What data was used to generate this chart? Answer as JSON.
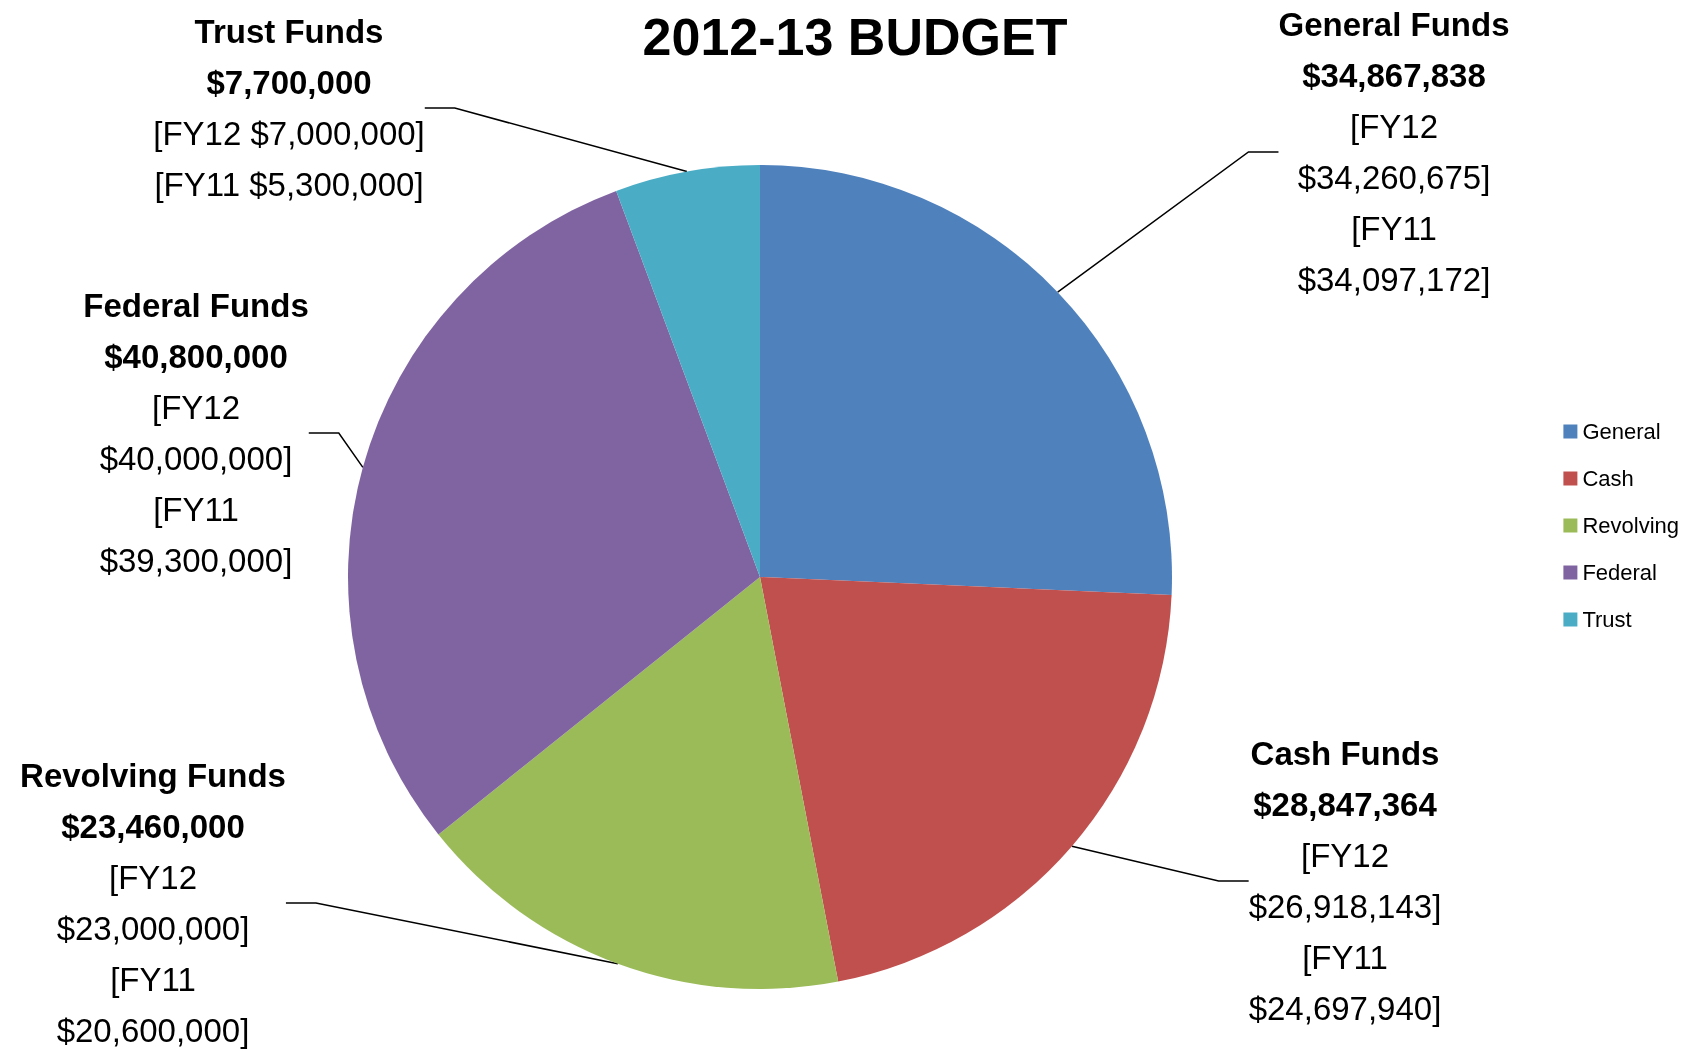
{
  "chart_data": {
    "type": "pie",
    "title": "2012-13 BUDGET",
    "categories": [
      "General",
      "Cash",
      "Revolving",
      "Federal",
      "Trust"
    ],
    "values": [
      34867838,
      28847364,
      23460000,
      40800000,
      7700000
    ],
    "colors": [
      "#4f81bd",
      "#c0504d",
      "#9bbb59",
      "#8064a2",
      "#4bacc6"
    ],
    "value_labels": [
      "General Funds\n$34,867,838\n[FY12\n$34,260,675]\n[FY11\n$34,097,172]",
      "Cash Funds\n$28,847,364\n[FY12\n$26,918,143]\n[FY11\n$24,697,940]",
      "Revolving Funds\n$23,460,000\n[FY12\n$23,000,000]\n[FY11\n$20,600,000]",
      "Federal Funds\n$40,800,000\n[FY12\n$40,000,000]\n[FY11\n$39,300,000]",
      "Trust Funds\n$7,700,000\n[FY12 $7,000,000]\n[FY11 $5,300,000]"
    ],
    "legend": "right"
  }
}
